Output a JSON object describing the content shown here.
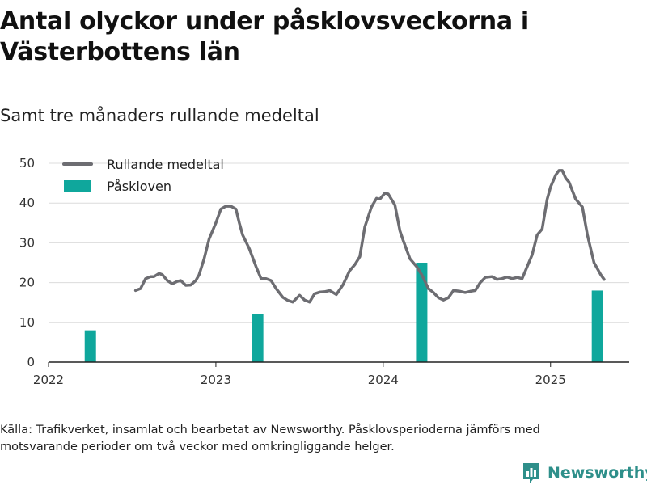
{
  "title": "Antal olyckor under påsklovsveckorna i Västerbottens län",
  "subtitle": "Samt tre månaders rullande medeltal",
  "source": "Källa: Trafikverket, insamlat och bearbetat av Newsworthy. Påsklovsperioderna jämförs med motsvarande perioder om två veckor med omkringliggande helger.",
  "logo": {
    "text": "Newsworthy",
    "icon": "bar-chart-logo-icon",
    "color": "#2e8f8a"
  },
  "colors": {
    "line": "#6d6d72",
    "bar": "#0fa79c",
    "grid": "#dcdcdc",
    "axis": "#222222"
  },
  "chart_data": {
    "type": "bar+line",
    "xlim": [
      2022.0,
      2025.47
    ],
    "ylim": [
      0,
      52
    ],
    "yticks": [
      0,
      10,
      20,
      30,
      40,
      50
    ],
    "xticks": [
      {
        "value": 2022,
        "label": "2022"
      },
      {
        "value": 2023,
        "label": "2023"
      },
      {
        "value": 2024,
        "label": "2024"
      },
      {
        "value": 2025,
        "label": "2025"
      }
    ],
    "grid": "horizontal",
    "legend": {
      "position": "top-left",
      "items": [
        {
          "label": "Rullande medeltal",
          "kind": "line"
        },
        {
          "label": "Påskloven",
          "kind": "bar"
        }
      ]
    },
    "bars": {
      "name": "Påskloven",
      "x": [
        2022.25,
        2023.25,
        2024.23,
        2025.28
      ],
      "values": [
        8,
        12,
        25,
        18
      ]
    },
    "line": {
      "name": "Rullande medeltal",
      "points": [
        [
          2022.52,
          18
        ],
        [
          2022.55,
          18.5
        ],
        [
          2022.58,
          21
        ],
        [
          2022.61,
          21.5
        ],
        [
          2022.63,
          21.5
        ],
        [
          2022.66,
          22.3
        ],
        [
          2022.68,
          22
        ],
        [
          2022.71,
          20.5
        ],
        [
          2022.74,
          19.7
        ],
        [
          2022.77,
          20.3
        ],
        [
          2022.79,
          20.5
        ],
        [
          2022.82,
          19.3
        ],
        [
          2022.85,
          19.4
        ],
        [
          2022.88,
          20.5
        ],
        [
          2022.9,
          22
        ],
        [
          2022.93,
          26
        ],
        [
          2022.96,
          31
        ],
        [
          2023.0,
          35
        ],
        [
          2023.03,
          38.5
        ],
        [
          2023.06,
          39.2
        ],
        [
          2023.09,
          39.2
        ],
        [
          2023.12,
          38.5
        ],
        [
          2023.14,
          35
        ],
        [
          2023.16,
          32
        ],
        [
          2023.2,
          28.5
        ],
        [
          2023.24,
          24
        ],
        [
          2023.27,
          21
        ],
        [
          2023.3,
          21
        ],
        [
          2023.33,
          20.5
        ],
        [
          2023.36,
          18.5
        ],
        [
          2023.4,
          16.3
        ],
        [
          2023.43,
          15.5
        ],
        [
          2023.46,
          15.1
        ],
        [
          2023.5,
          16.8
        ],
        [
          2023.53,
          15.6
        ],
        [
          2023.56,
          15.1
        ],
        [
          2023.59,
          17.2
        ],
        [
          2023.62,
          17.6
        ],
        [
          2023.65,
          17.7
        ],
        [
          2023.68,
          18
        ],
        [
          2023.72,
          17
        ],
        [
          2023.76,
          19.5
        ],
        [
          2023.8,
          23
        ],
        [
          2023.83,
          24.5
        ],
        [
          2023.86,
          26.5
        ],
        [
          2023.89,
          34
        ],
        [
          2023.93,
          39
        ],
        [
          2023.96,
          41.2
        ],
        [
          2023.98,
          41
        ],
        [
          2024.01,
          42.5
        ],
        [
          2024.03,
          42.3
        ],
        [
          2024.07,
          39.5
        ],
        [
          2024.1,
          33
        ],
        [
          2024.12,
          30.5
        ],
        [
          2024.16,
          26
        ],
        [
          2024.2,
          24
        ],
        [
          2024.23,
          22
        ],
        [
          2024.27,
          18.5
        ],
        [
          2024.3,
          17.5
        ],
        [
          2024.33,
          16.2
        ],
        [
          2024.36,
          15.6
        ],
        [
          2024.39,
          16.2
        ],
        [
          2024.42,
          18
        ],
        [
          2024.46,
          17.8
        ],
        [
          2024.49,
          17.5
        ],
        [
          2024.52,
          17.8
        ],
        [
          2024.55,
          18
        ],
        [
          2024.58,
          20
        ],
        [
          2024.61,
          21.3
        ],
        [
          2024.65,
          21.5
        ],
        [
          2024.68,
          20.8
        ],
        [
          2024.71,
          21
        ],
        [
          2024.74,
          21.4
        ],
        [
          2024.77,
          21
        ],
        [
          2024.8,
          21.3
        ],
        [
          2024.83,
          21
        ],
        [
          2024.86,
          24
        ],
        [
          2024.89,
          27
        ],
        [
          2024.92,
          32
        ],
        [
          2024.95,
          33.5
        ],
        [
          2024.98,
          41
        ],
        [
          2025.0,
          44
        ],
        [
          2025.03,
          47
        ],
        [
          2025.05,
          48.2
        ],
        [
          2025.07,
          48.2
        ],
        [
          2025.09,
          46.3
        ],
        [
          2025.11,
          45.3
        ],
        [
          2025.15,
          41
        ],
        [
          2025.19,
          39
        ],
        [
          2025.22,
          32
        ],
        [
          2025.26,
          25
        ],
        [
          2025.3,
          22
        ],
        [
          2025.32,
          20.8
        ]
      ]
    }
  }
}
